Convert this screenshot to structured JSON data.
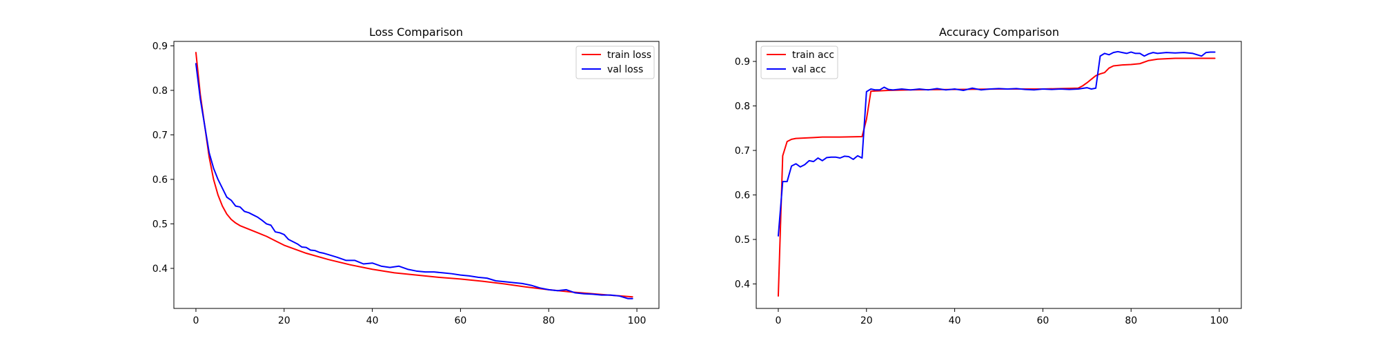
{
  "chart_data": [
    {
      "type": "line",
      "title": "Loss Comparison",
      "xlabel": "",
      "ylabel": "",
      "xlim": [
        -5,
        105
      ],
      "ylim": [
        0.31,
        0.91
      ],
      "xticks": [
        0,
        20,
        40,
        60,
        80,
        100
      ],
      "yticks": [
        0.4,
        0.5,
        0.6,
        0.7,
        0.8,
        0.9
      ],
      "tick_labels": {
        "x": [
          "0",
          "20",
          "40",
          "60",
          "80",
          "100"
        ],
        "y": [
          "0.4",
          "0.5",
          "0.6",
          "0.7",
          "0.8",
          "0.9"
        ]
      },
      "grid": false,
      "legend": "top-right",
      "series": [
        {
          "name": "train loss",
          "color": "#ff0000",
          "x": [
            0,
            1,
            2,
            3,
            4,
            5,
            6,
            7,
            8,
            9,
            10,
            12,
            14,
            16,
            18,
            20,
            25,
            30,
            35,
            40,
            45,
            50,
            55,
            60,
            65,
            70,
            75,
            80,
            85,
            90,
            95,
            99
          ],
          "values": [
            0.885,
            0.79,
            0.72,
            0.65,
            0.6,
            0.565,
            0.54,
            0.522,
            0.51,
            0.502,
            0.496,
            0.488,
            0.48,
            0.472,
            0.462,
            0.452,
            0.434,
            0.42,
            0.408,
            0.398,
            0.39,
            0.385,
            0.38,
            0.376,
            0.371,
            0.365,
            0.358,
            0.352,
            0.347,
            0.343,
            0.339,
            0.336
          ]
        },
        {
          "name": "val loss",
          "color": "#0000ff",
          "x": [
            0,
            1,
            2,
            3,
            4,
            5,
            6,
            7,
            8,
            9,
            10,
            11,
            12,
            13,
            14,
            15,
            16,
            17,
            18,
            19,
            20,
            21,
            22,
            23,
            24,
            25,
            26,
            27,
            28,
            29,
            30,
            32,
            34,
            36,
            38,
            40,
            42,
            44,
            46,
            48,
            50,
            52,
            54,
            56,
            58,
            60,
            62,
            64,
            66,
            68,
            70,
            72,
            74,
            76,
            78,
            80,
            82,
            84,
            86,
            88,
            90,
            92,
            94,
            96,
            98,
            99
          ],
          "values": [
            0.86,
            0.78,
            0.72,
            0.66,
            0.625,
            0.6,
            0.58,
            0.56,
            0.553,
            0.54,
            0.538,
            0.528,
            0.525,
            0.52,
            0.515,
            0.508,
            0.5,
            0.497,
            0.482,
            0.48,
            0.476,
            0.465,
            0.46,
            0.455,
            0.448,
            0.447,
            0.441,
            0.44,
            0.436,
            0.434,
            0.431,
            0.425,
            0.418,
            0.418,
            0.41,
            0.412,
            0.405,
            0.402,
            0.405,
            0.398,
            0.394,
            0.392,
            0.392,
            0.39,
            0.388,
            0.385,
            0.383,
            0.38,
            0.378,
            0.372,
            0.37,
            0.368,
            0.366,
            0.362,
            0.356,
            0.352,
            0.35,
            0.352,
            0.345,
            0.343,
            0.342,
            0.34,
            0.34,
            0.338,
            0.332,
            0.332
          ]
        }
      ]
    },
    {
      "type": "line",
      "title": "Accuracy Comparison",
      "xlabel": "",
      "ylabel": "",
      "xlim": [
        -5,
        105
      ],
      "ylim": [
        0.345,
        0.945
      ],
      "xticks": [
        0,
        20,
        40,
        60,
        80,
        100
      ],
      "yticks": [
        0.4,
        0.5,
        0.6,
        0.7,
        0.8,
        0.9
      ],
      "tick_labels": {
        "x": [
          "0",
          "20",
          "40",
          "60",
          "80",
          "100"
        ],
        "y": [
          "0.4",
          "0.5",
          "0.6",
          "0.7",
          "0.8",
          "0.9"
        ]
      },
      "grid": false,
      "legend": "top-left",
      "series": [
        {
          "name": "train acc",
          "color": "#ff0000",
          "x": [
            0,
            1,
            2,
            3,
            4,
            6,
            8,
            10,
            14,
            19,
            20,
            21,
            25,
            30,
            40,
            50,
            60,
            68,
            69,
            70,
            71,
            72,
            73,
            74,
            75,
            76,
            78,
            80,
            82,
            84,
            86,
            88,
            90,
            95,
            99
          ],
          "values": [
            0.373,
            0.688,
            0.72,
            0.725,
            0.727,
            0.728,
            0.729,
            0.73,
            0.73,
            0.731,
            0.77,
            0.833,
            0.835,
            0.836,
            0.837,
            0.838,
            0.838,
            0.84,
            0.845,
            0.852,
            0.86,
            0.868,
            0.872,
            0.875,
            0.885,
            0.89,
            0.892,
            0.893,
            0.895,
            0.902,
            0.905,
            0.906,
            0.907,
            0.907,
            0.907
          ]
        },
        {
          "name": "val acc",
          "color": "#0000ff",
          "x": [
            0,
            1,
            2,
            3,
            4,
            5,
            6,
            7,
            8,
            9,
            10,
            11,
            12,
            13,
            14,
            15,
            16,
            17,
            18,
            19,
            20,
            21,
            22,
            23,
            24,
            25,
            26,
            28,
            30,
            32,
            34,
            36,
            38,
            40,
            42,
            44,
            46,
            48,
            50,
            52,
            54,
            56,
            58,
            60,
            62,
            64,
            66,
            68,
            70,
            71,
            72,
            73,
            74,
            75,
            76,
            77,
            78,
            79,
            80,
            81,
            82,
            83,
            84,
            85,
            86,
            88,
            90,
            92,
            94,
            96,
            97,
            98,
            99
          ],
          "values": [
            0.508,
            0.63,
            0.63,
            0.665,
            0.67,
            0.663,
            0.668,
            0.677,
            0.675,
            0.683,
            0.677,
            0.684,
            0.685,
            0.685,
            0.683,
            0.687,
            0.686,
            0.68,
            0.688,
            0.683,
            0.832,
            0.838,
            0.836,
            0.836,
            0.842,
            0.837,
            0.836,
            0.838,
            0.836,
            0.838,
            0.836,
            0.839,
            0.836,
            0.838,
            0.835,
            0.84,
            0.836,
            0.838,
            0.839,
            0.838,
            0.839,
            0.837,
            0.836,
            0.838,
            0.837,
            0.838,
            0.837,
            0.838,
            0.841,
            0.838,
            0.84,
            0.912,
            0.918,
            0.915,
            0.92,
            0.922,
            0.92,
            0.918,
            0.921,
            0.918,
            0.918,
            0.912,
            0.917,
            0.92,
            0.918,
            0.92,
            0.919,
            0.92,
            0.918,
            0.912,
            0.92,
            0.921,
            0.921
          ]
        }
      ]
    }
  ]
}
